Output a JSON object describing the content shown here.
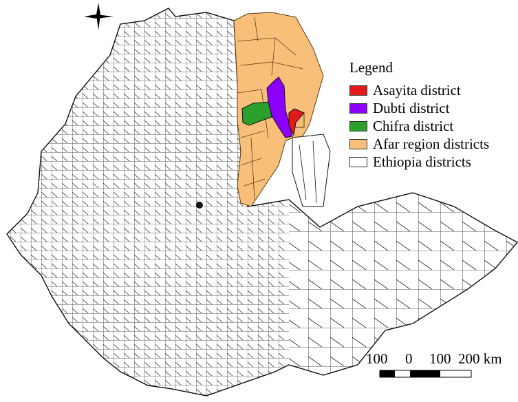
{
  "legend": {
    "title": "Legend",
    "items": [
      {
        "label": "Asayita district",
        "color": "#e31a1c"
      },
      {
        "label": "Dubti district",
        "color": "#8b00ff"
      },
      {
        "label": "Chifra district",
        "color": "#2ca02c"
      },
      {
        "label": "Afar region districts",
        "color": "#f8bf7a"
      },
      {
        "label": "Ethiopia districts",
        "color": "#ffffff"
      }
    ]
  },
  "scale_bar": {
    "labels": [
      "100",
      "0",
      "100",
      "200 km"
    ]
  },
  "north_arrow": {
    "icon": "compass-star-icon"
  }
}
